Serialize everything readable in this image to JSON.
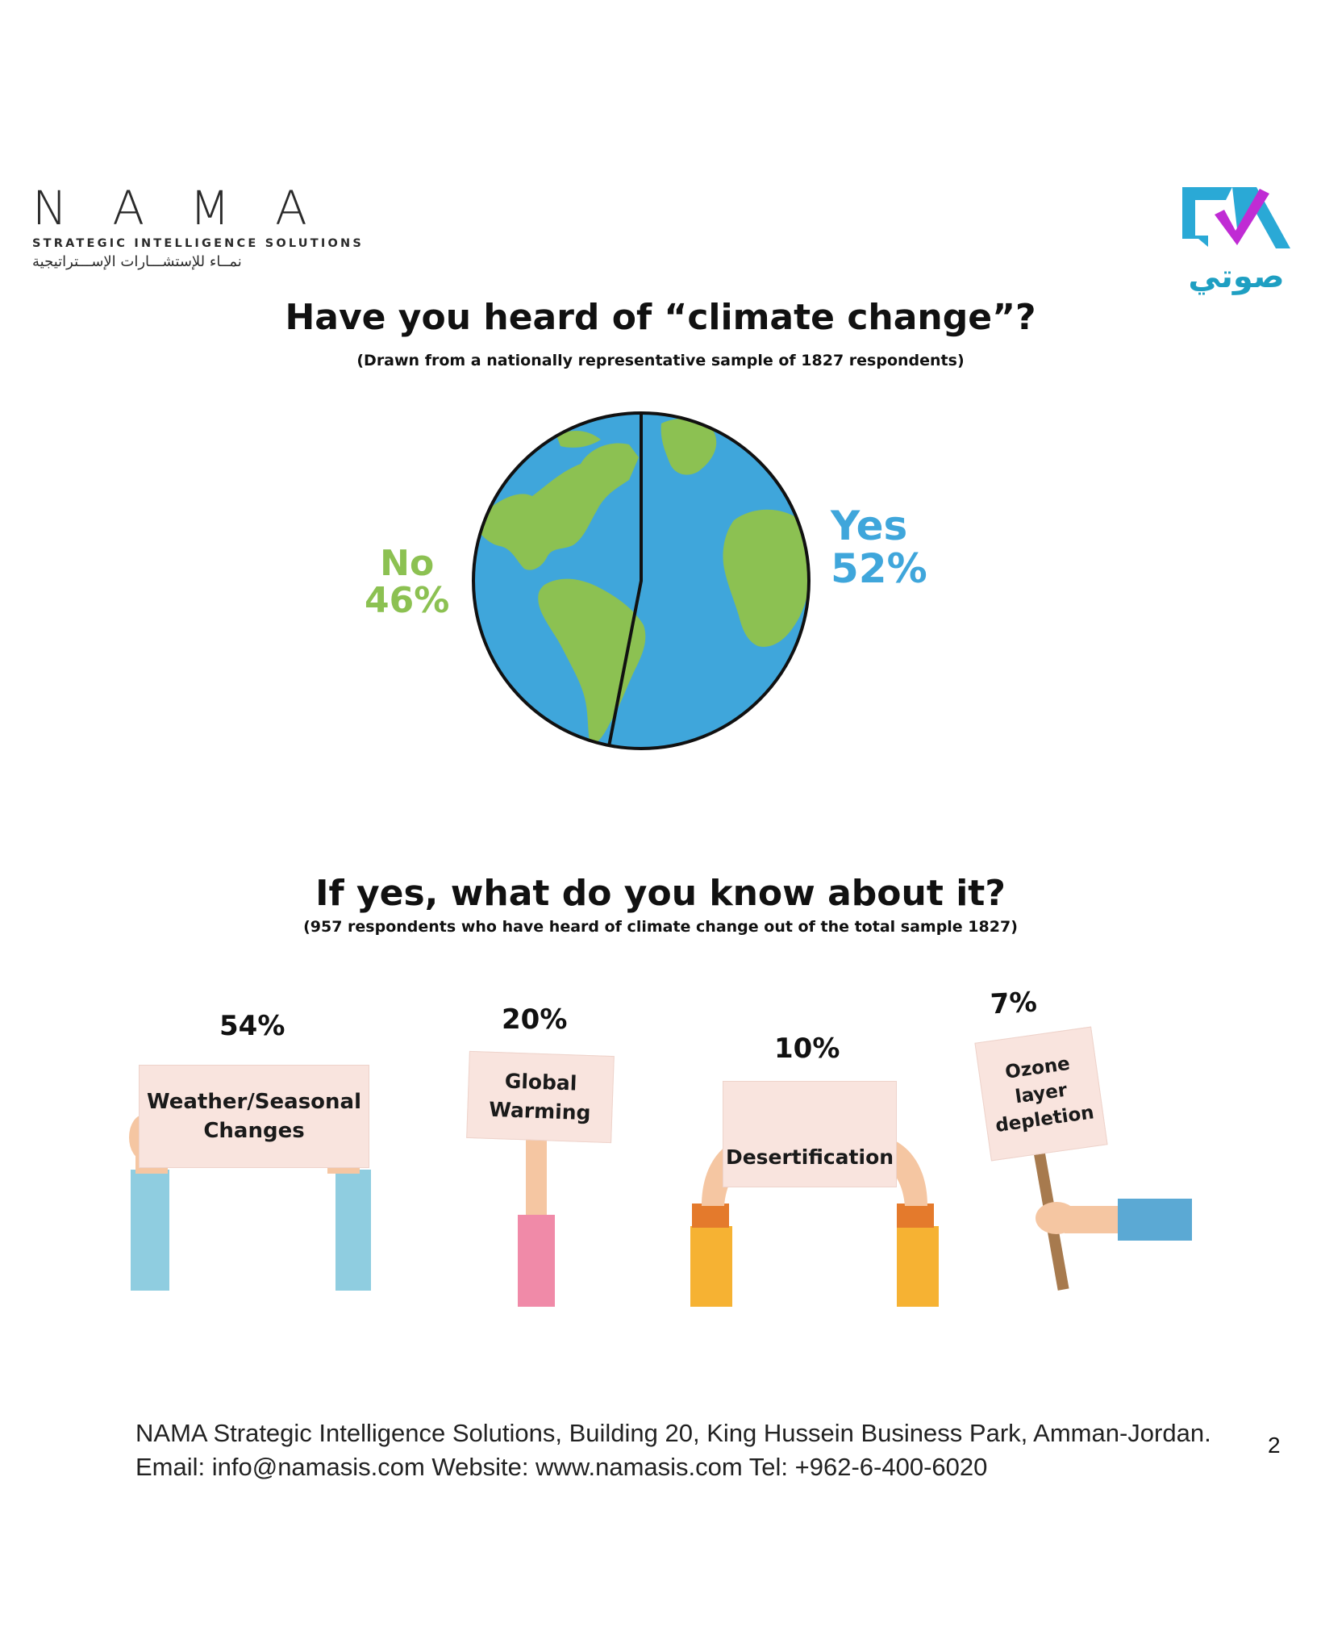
{
  "header": {
    "nama_letters": "NAMA",
    "nama_tagline": "STRATEGIC INTELLIGENCE SOLUTIONS",
    "nama_arabic": "نمــاء للإستشـــارات الإســـتراتيجية",
    "sawti_word": "صوتي"
  },
  "colors": {
    "no_green": "#8cc152",
    "yes_blue": "#3fa6db",
    "sign_fill": "#f9e4de"
  },
  "section1": {
    "title": "Have you heard of “climate change”?",
    "subtitle": "(Drawn from a nationally representative sample of 1827 respondents)"
  },
  "section2": {
    "title": "If yes, what do you know about it?",
    "subtitle": "(957 respondents who have heard of climate change out of the total sample 1827)"
  },
  "chart_data": [
    {
      "type": "pie",
      "categories": [
        "No",
        "Yes"
      ],
      "values": [
        46,
        52
      ],
      "labels": [
        "46%",
        "52%"
      ],
      "colors": [
        "#8cc152",
        "#3fa6db"
      ]
    },
    {
      "type": "bar",
      "categories": [
        "Weather/Seasonal Changes",
        "Global Warming",
        "Desertification",
        "Ozone layer depletion"
      ],
      "values": [
        54,
        20,
        10,
        7
      ],
      "labels": [
        "54%",
        "20%",
        "10%",
        "7%"
      ],
      "sign_lines": [
        [
          "Weather/Seasonal",
          "Changes"
        ],
        [
          "Global",
          "Warming"
        ],
        [
          "Desertification"
        ],
        [
          "Ozone layer",
          "depletion"
        ]
      ]
    }
  ],
  "footer": {
    "line1": "NAMA Strategic Intelligence Solutions, Building 20, King Hussein Business Park, Amman-Jordan.",
    "line2": "Email: info@namasis.com Website: www.namasis.com Tel: +962-6-400-6020",
    "page_number": "2"
  }
}
